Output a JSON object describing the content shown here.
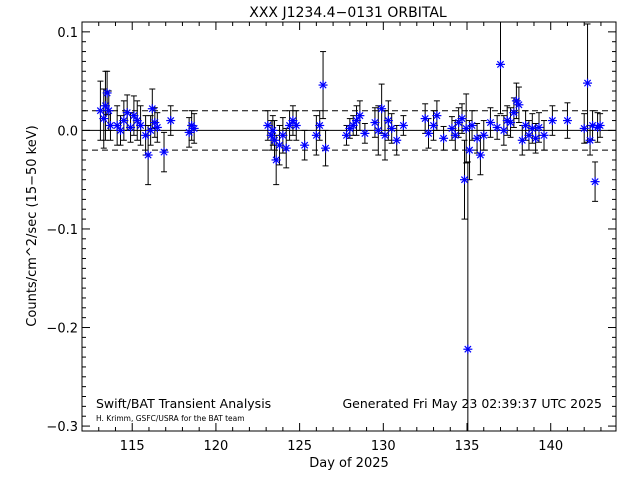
{
  "chart_data": {
    "type": "scatter",
    "title": "XXX J1234.4−0131 ORBITAL",
    "xlabel": "Day of 2025",
    "ylabel": "Counts/cm^2/sec (15−50 keV)",
    "xlim": [
      112.0,
      143.9
    ],
    "ylim": [
      -0.305,
      0.11
    ],
    "x_ticks": [
      115,
      120,
      125,
      130,
      135,
      140
    ],
    "y_ticks": [
      -0.3,
      -0.2,
      -0.1,
      0.0,
      0.1
    ],
    "y_tick_labels": [
      "−0.3",
      "−0.2",
      "−0.1",
      "0.0",
      "0.1"
    ],
    "zero_line": 0.0,
    "threshold_lines": [
      0.02,
      -0.02
    ],
    "grid": false,
    "marker_color": "#0000ff",
    "series": [
      {
        "marker": "asterisk",
        "points": [
          {
            "x": 113.1,
            "y": 0.02,
            "err": 0.03
          },
          {
            "x": 113.3,
            "y": 0.012,
            "err": 0.03
          },
          {
            "x": 113.4,
            "y": 0.025,
            "err": 0.035
          },
          {
            "x": 113.5,
            "y": 0.038,
            "err": 0.022
          },
          {
            "x": 113.6,
            "y": 0.02,
            "err": 0.02
          },
          {
            "x": 113.7,
            "y": 0.005,
            "err": 0.015
          },
          {
            "x": 114.1,
            "y": 0.005,
            "err": 0.02
          },
          {
            "x": 114.3,
            "y": 0.0,
            "err": 0.015
          },
          {
            "x": 114.5,
            "y": 0.01,
            "err": 0.02
          },
          {
            "x": 114.7,
            "y": 0.018,
            "err": 0.018
          },
          {
            "x": 114.9,
            "y": 0.003,
            "err": 0.015
          },
          {
            "x": 115.1,
            "y": 0.015,
            "err": 0.02
          },
          {
            "x": 115.3,
            "y": 0.01,
            "err": 0.02
          },
          {
            "x": 115.5,
            "y": 0.005,
            "err": 0.02
          },
          {
            "x": 115.8,
            "y": -0.005,
            "err": 0.02
          },
          {
            "x": 115.95,
            "y": -0.025,
            "err": 0.03
          },
          {
            "x": 116.1,
            "y": 0.0,
            "err": 0.015
          },
          {
            "x": 116.2,
            "y": 0.022,
            "err": 0.02
          },
          {
            "x": 116.35,
            "y": 0.008,
            "err": 0.015
          },
          {
            "x": 116.5,
            "y": 0.003,
            "err": 0.015
          },
          {
            "x": 116.9,
            "y": -0.022,
            "err": 0.02
          },
          {
            "x": 117.3,
            "y": 0.01,
            "err": 0.015
          },
          {
            "x": 118.4,
            "y": -0.002,
            "err": 0.015
          },
          {
            "x": 118.55,
            "y": 0.005,
            "err": 0.015
          },
          {
            "x": 118.7,
            "y": 0.002,
            "err": 0.015
          },
          {
            "x": 123.1,
            "y": 0.005,
            "err": 0.015
          },
          {
            "x": 123.3,
            "y": -0.005,
            "err": 0.015
          },
          {
            "x": 123.4,
            "y": 0.0,
            "err": 0.015
          },
          {
            "x": 123.5,
            "y": -0.01,
            "err": 0.02
          },
          {
            "x": 123.6,
            "y": -0.03,
            "err": 0.025
          },
          {
            "x": 123.8,
            "y": -0.015,
            "err": 0.02
          },
          {
            "x": 124.0,
            "y": -0.005,
            "err": 0.018
          },
          {
            "x": 124.2,
            "y": -0.018,
            "err": 0.02
          },
          {
            "x": 124.4,
            "y": 0.005,
            "err": 0.015
          },
          {
            "x": 124.6,
            "y": 0.01,
            "err": 0.015
          },
          {
            "x": 124.8,
            "y": 0.005,
            "err": 0.015
          },
          {
            "x": 125.3,
            "y": -0.015,
            "err": 0.015
          },
          {
            "x": 126.0,
            "y": -0.005,
            "err": 0.02
          },
          {
            "x": 126.2,
            "y": 0.005,
            "err": 0.015
          },
          {
            "x": 126.4,
            "y": 0.046,
            "err": 0.034
          },
          {
            "x": 126.55,
            "y": -0.018,
            "err": 0.018
          },
          {
            "x": 127.8,
            "y": -0.005,
            "err": 0.01
          },
          {
            "x": 128.0,
            "y": 0.002,
            "err": 0.01
          },
          {
            "x": 128.2,
            "y": 0.005,
            "err": 0.01
          },
          {
            "x": 128.4,
            "y": 0.01,
            "err": 0.015
          },
          {
            "x": 128.6,
            "y": 0.015,
            "err": 0.015
          },
          {
            "x": 128.9,
            "y": -0.003,
            "err": 0.01
          },
          {
            "x": 129.5,
            "y": 0.008,
            "err": 0.015
          },
          {
            "x": 129.7,
            "y": 0.0,
            "err": 0.025
          },
          {
            "x": 129.9,
            "y": 0.022,
            "err": 0.025
          },
          {
            "x": 130.1,
            "y": -0.005,
            "err": 0.025
          },
          {
            "x": 130.3,
            "y": 0.01,
            "err": 0.02
          },
          {
            "x": 130.5,
            "y": 0.002,
            "err": 0.015
          },
          {
            "x": 130.8,
            "y": -0.01,
            "err": 0.015
          },
          {
            "x": 131.2,
            "y": 0.005,
            "err": 0.01
          },
          {
            "x": 132.5,
            "y": 0.012,
            "err": 0.015
          },
          {
            "x": 132.7,
            "y": -0.003,
            "err": 0.015
          },
          {
            "x": 133.0,
            "y": 0.005,
            "err": 0.015
          },
          {
            "x": 133.2,
            "y": 0.015,
            "err": 0.015
          },
          {
            "x": 133.6,
            "y": -0.008,
            "err": 0.012
          },
          {
            "x": 134.1,
            "y": 0.002,
            "err": 0.012
          },
          {
            "x": 134.3,
            "y": -0.005,
            "err": 0.015
          },
          {
            "x": 134.5,
            "y": 0.008,
            "err": 0.015
          },
          {
            "x": 134.7,
            "y": 0.012,
            "err": 0.015
          },
          {
            "x": 134.85,
            "y": -0.05,
            "err": 0.04
          },
          {
            "x": 134.95,
            "y": 0.002,
            "err": 0.035
          },
          {
            "x": 135.05,
            "y": -0.222,
            "err": 0.19
          },
          {
            "x": 135.15,
            "y": -0.02,
            "err": 0.03
          },
          {
            "x": 135.3,
            "y": 0.005,
            "err": 0.015
          },
          {
            "x": 135.6,
            "y": -0.008,
            "err": 0.015
          },
          {
            "x": 135.8,
            "y": -0.025,
            "err": 0.02
          },
          {
            "x": 136.0,
            "y": -0.005,
            "err": 0.015
          },
          {
            "x": 136.4,
            "y": 0.008,
            "err": 0.015
          },
          {
            "x": 136.8,
            "y": 0.003,
            "err": 0.012
          },
          {
            "x": 137.0,
            "y": 0.067,
            "err": 0.05
          },
          {
            "x": 137.2,
            "y": 0.0,
            "err": 0.015
          },
          {
            "x": 137.4,
            "y": 0.01,
            "err": 0.015
          },
          {
            "x": 137.6,
            "y": 0.008,
            "err": 0.015
          },
          {
            "x": 137.8,
            "y": 0.018,
            "err": 0.015
          },
          {
            "x": 137.95,
            "y": 0.03,
            "err": 0.018
          },
          {
            "x": 138.1,
            "y": 0.026,
            "err": 0.018
          },
          {
            "x": 138.3,
            "y": -0.01,
            "err": 0.015
          },
          {
            "x": 138.5,
            "y": 0.005,
            "err": 0.015
          },
          {
            "x": 138.7,
            "y": -0.005,
            "err": 0.015
          },
          {
            "x": 138.9,
            "y": 0.002,
            "err": 0.015
          },
          {
            "x": 139.1,
            "y": -0.008,
            "err": 0.015
          },
          {
            "x": 139.3,
            "y": 0.003,
            "err": 0.015
          },
          {
            "x": 139.6,
            "y": -0.005,
            "err": 0.015
          },
          {
            "x": 140.1,
            "y": 0.01,
            "err": 0.015
          },
          {
            "x": 141.0,
            "y": 0.01,
            "err": 0.018
          },
          {
            "x": 142.0,
            "y": 0.002,
            "err": 0.015
          },
          {
            "x": 142.2,
            "y": 0.048,
            "err": 0.06
          },
          {
            "x": 142.35,
            "y": -0.01,
            "err": 0.015
          },
          {
            "x": 142.5,
            "y": 0.005,
            "err": 0.015
          },
          {
            "x": 142.65,
            "y": -0.052,
            "err": 0.02
          },
          {
            "x": 142.8,
            "y": 0.003,
            "err": 0.015
          },
          {
            "x": 142.95,
            "y": 0.005,
            "err": 0.012
          }
        ]
      }
    ],
    "footer": {
      "left_title": "Swift/BAT Transient Analysis",
      "left_credit": "H. Krimm, GSFC/USRA for the BAT team",
      "right_generated": "Generated Fri May 23 02:39:37 UTC 2025"
    }
  }
}
